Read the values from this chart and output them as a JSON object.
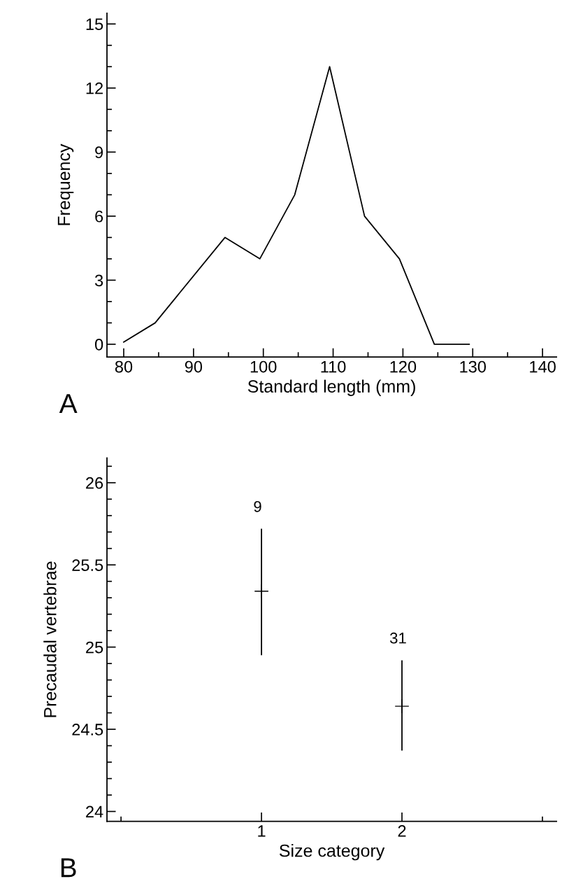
{
  "chart_data": [
    {
      "type": "line",
      "xlabel": "Standard length (mm)",
      "ylabel": "Frequency",
      "annotations": [
        "A"
      ],
      "x": [
        80,
        84.5,
        94.5,
        99.5,
        104.5,
        109.5,
        114.5,
        119.5,
        124.5,
        129.5
      ],
      "series": [
        {
          "color": "#000000",
          "values": [
            0.1,
            1,
            5,
            4,
            7,
            13,
            6,
            4,
            0,
            0
          ]
        }
      ],
      "xlim": [
        77.6,
        142
      ],
      "xticks": [
        80,
        90,
        100,
        110,
        120,
        130,
        140
      ],
      "ylim": [
        -0.6,
        15.5
      ],
      "yticks": [
        0,
        3,
        6,
        9,
        12,
        15
      ],
      "grid": false,
      "legend": false,
      "marker": "none",
      "line_style": "solid"
    },
    {
      "type": "scatter",
      "xlabel": "Size category",
      "ylabel": "Precaudal vertebrae",
      "annotations": [
        "B",
        "9",
        "31"
      ],
      "x": [
        1,
        2
      ],
      "series": [
        {
          "color": "#000000",
          "values": [
            25.34,
            24.64
          ],
          "errors": [
            [
              24.95,
              25.72
            ],
            [
              24.37,
              24.92
            ]
          ]
        }
      ],
      "xlim": [
        -0.1,
        3.1
      ],
      "xticks": [
        1,
        2
      ],
      "ylim": [
        23.94,
        26.15
      ],
      "yticks": [
        24,
        24.5,
        25,
        25.5,
        26
      ],
      "grid": false,
      "legend": false,
      "marker": "cross"
    }
  ]
}
